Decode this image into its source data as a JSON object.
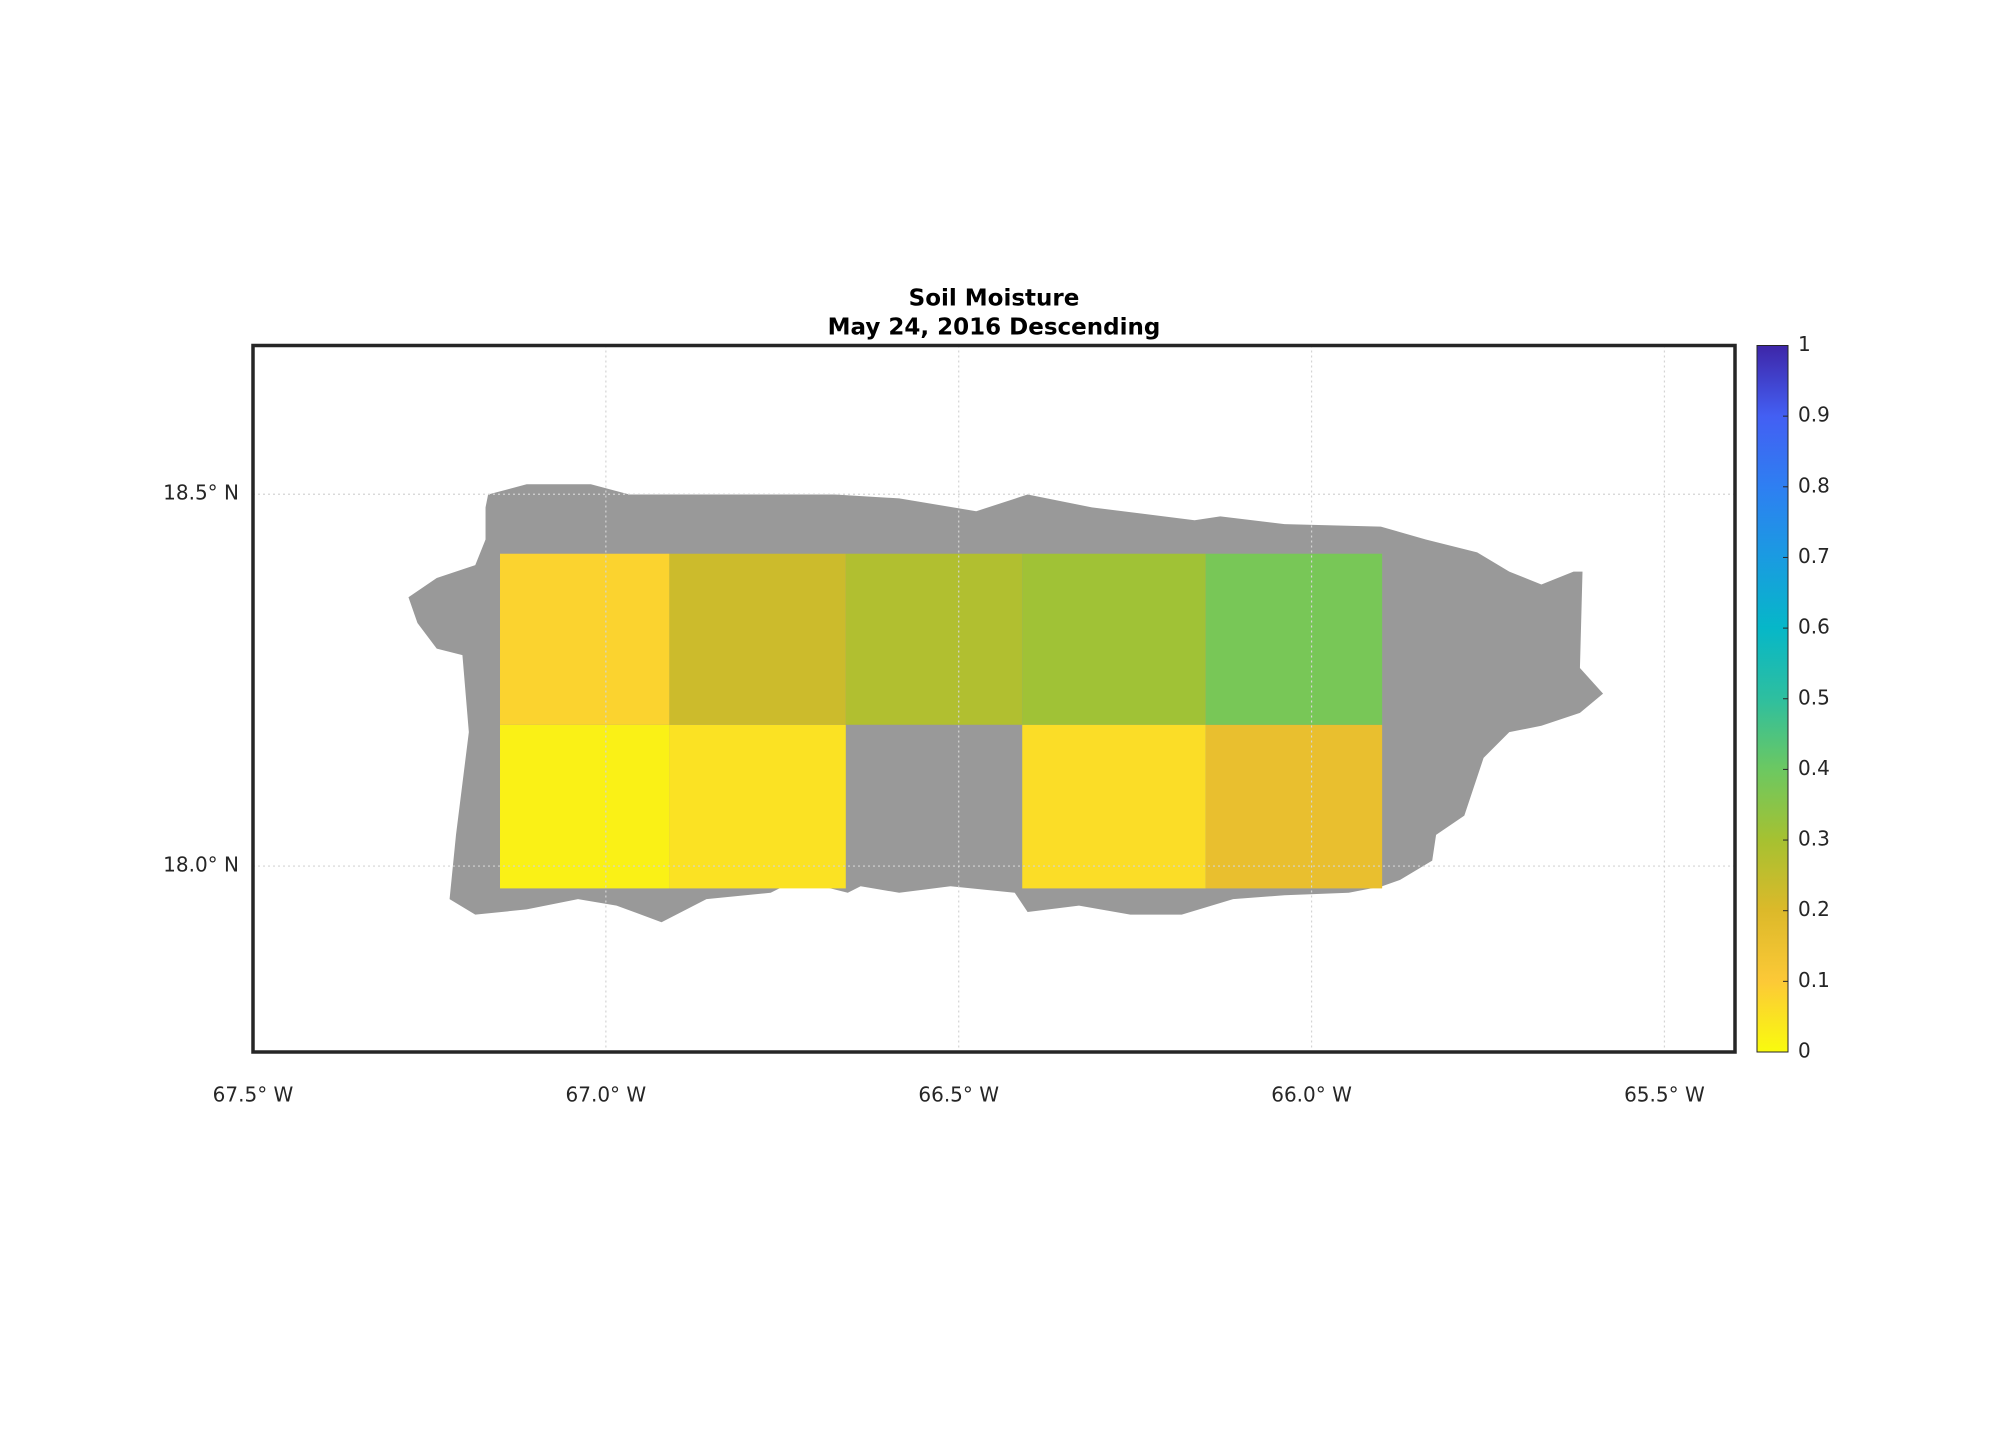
{
  "chart_data": {
    "type": "heatmap",
    "title": "Soil Moisture",
    "subtitle": "May 24, 2016 Descending",
    "x_edges": [
      -67.15,
      -66.91,
      -66.66,
      -66.41,
      -66.15,
      -65.9
    ],
    "y_edges": [
      17.97,
      18.19,
      18.42
    ],
    "values": [
      [
        0.02,
        0.05,
        null,
        0.06,
        0.16
      ],
      [
        0.08,
        0.23,
        0.28,
        0.31,
        0.38
      ]
    ],
    "xlim": [
      -67.5,
      -65.4
    ],
    "ylim": [
      17.75,
      18.7
    ],
    "xticks": [
      {
        "value": -67.5,
        "label": "67.5° W"
      },
      {
        "value": -67.0,
        "label": "67.0° W"
      },
      {
        "value": -66.5,
        "label": "66.5° W"
      },
      {
        "value": -66.0,
        "label": "66.0° W"
      },
      {
        "value": -65.5,
        "label": "65.5° W"
      }
    ],
    "yticks": [
      {
        "value": 18.0,
        "label": "18.0° N"
      },
      {
        "value": 18.5,
        "label": "18.5° N"
      }
    ],
    "grid": true,
    "clim": [
      0,
      1
    ],
    "colorbar_ticks": [
      0,
      0.1,
      0.2,
      0.3,
      0.4,
      0.5,
      0.6,
      0.7,
      0.8,
      0.9,
      1
    ],
    "colormap": [
      "#f9fb0e",
      "#fcc937",
      "#dcb92a",
      "#a6c131",
      "#6cc861",
      "#2ebf9f",
      "#06b7c8",
      "#1a9be1",
      "#2e7ff2",
      "#435ff3",
      "#3e26a8"
    ],
    "land_color": "#999999"
  }
}
